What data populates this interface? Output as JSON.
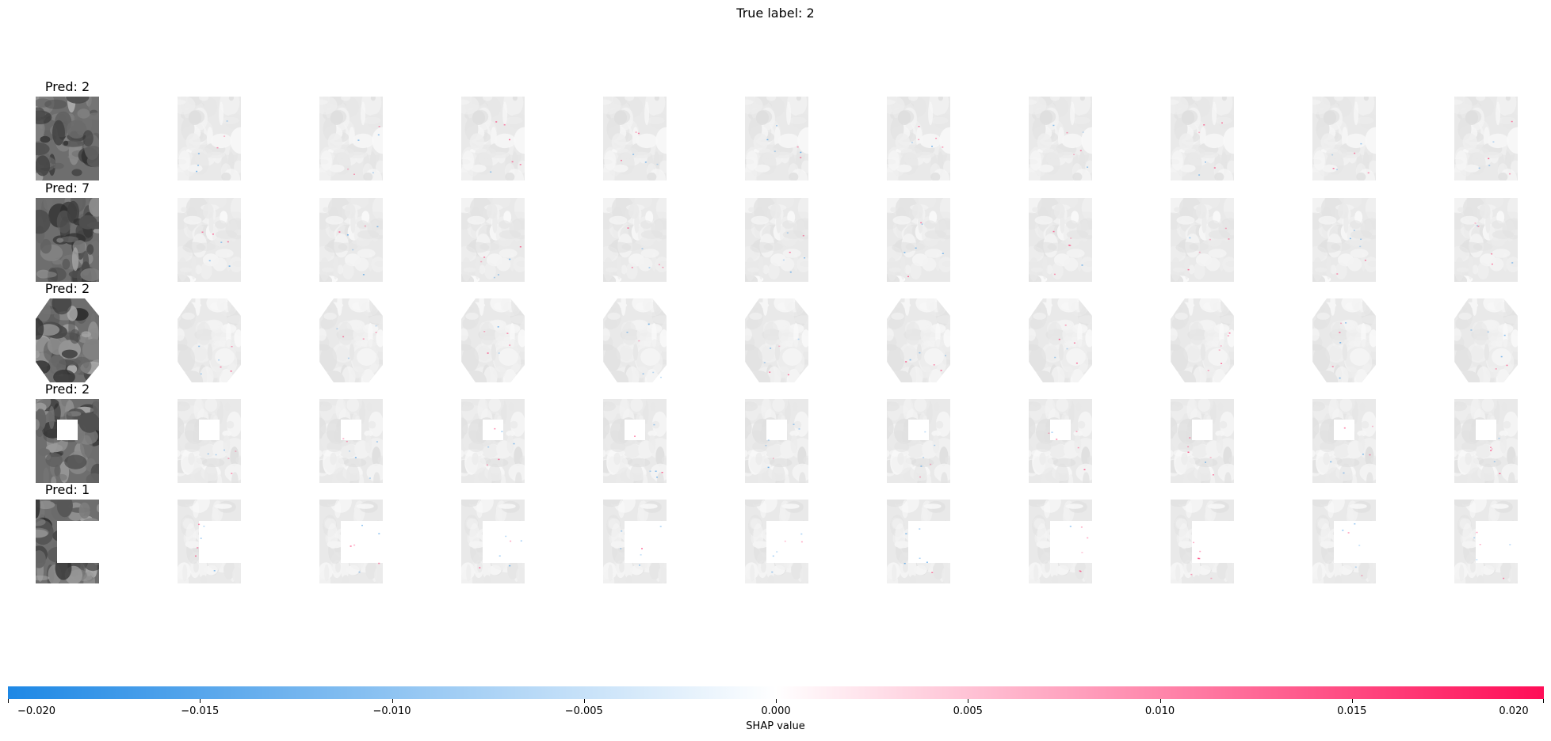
{
  "chart_data": {
    "type": "heatmap",
    "title": "True label: 2",
    "rows": [
      {
        "label": "Pred: 2",
        "mask": "none"
      },
      {
        "label": "Pred: 7",
        "mask": "none"
      },
      {
        "label": "Pred: 2",
        "mask": "octagon-crop"
      },
      {
        "label": "Pred: 2",
        "mask": "small-square"
      },
      {
        "label": "Pred: 1",
        "mask": "large-square"
      }
    ],
    "explanation_columns": 10,
    "colorbar": {
      "label": "SHAP value",
      "range": [
        -0.02,
        0.02
      ],
      "ticks": [
        "−0.020",
        "−0.015",
        "−0.010",
        "−0.005",
        "0.000",
        "0.005",
        "0.010",
        "0.015",
        "0.020"
      ],
      "tick_values": [
        -0.02,
        -0.015,
        -0.01,
        -0.005,
        0,
        0.005,
        0.01,
        0.015,
        0.02
      ],
      "colors": {
        "negative": "#1e88e5",
        "zero": "#ffffff",
        "positive": "#ff0d57"
      }
    }
  }
}
